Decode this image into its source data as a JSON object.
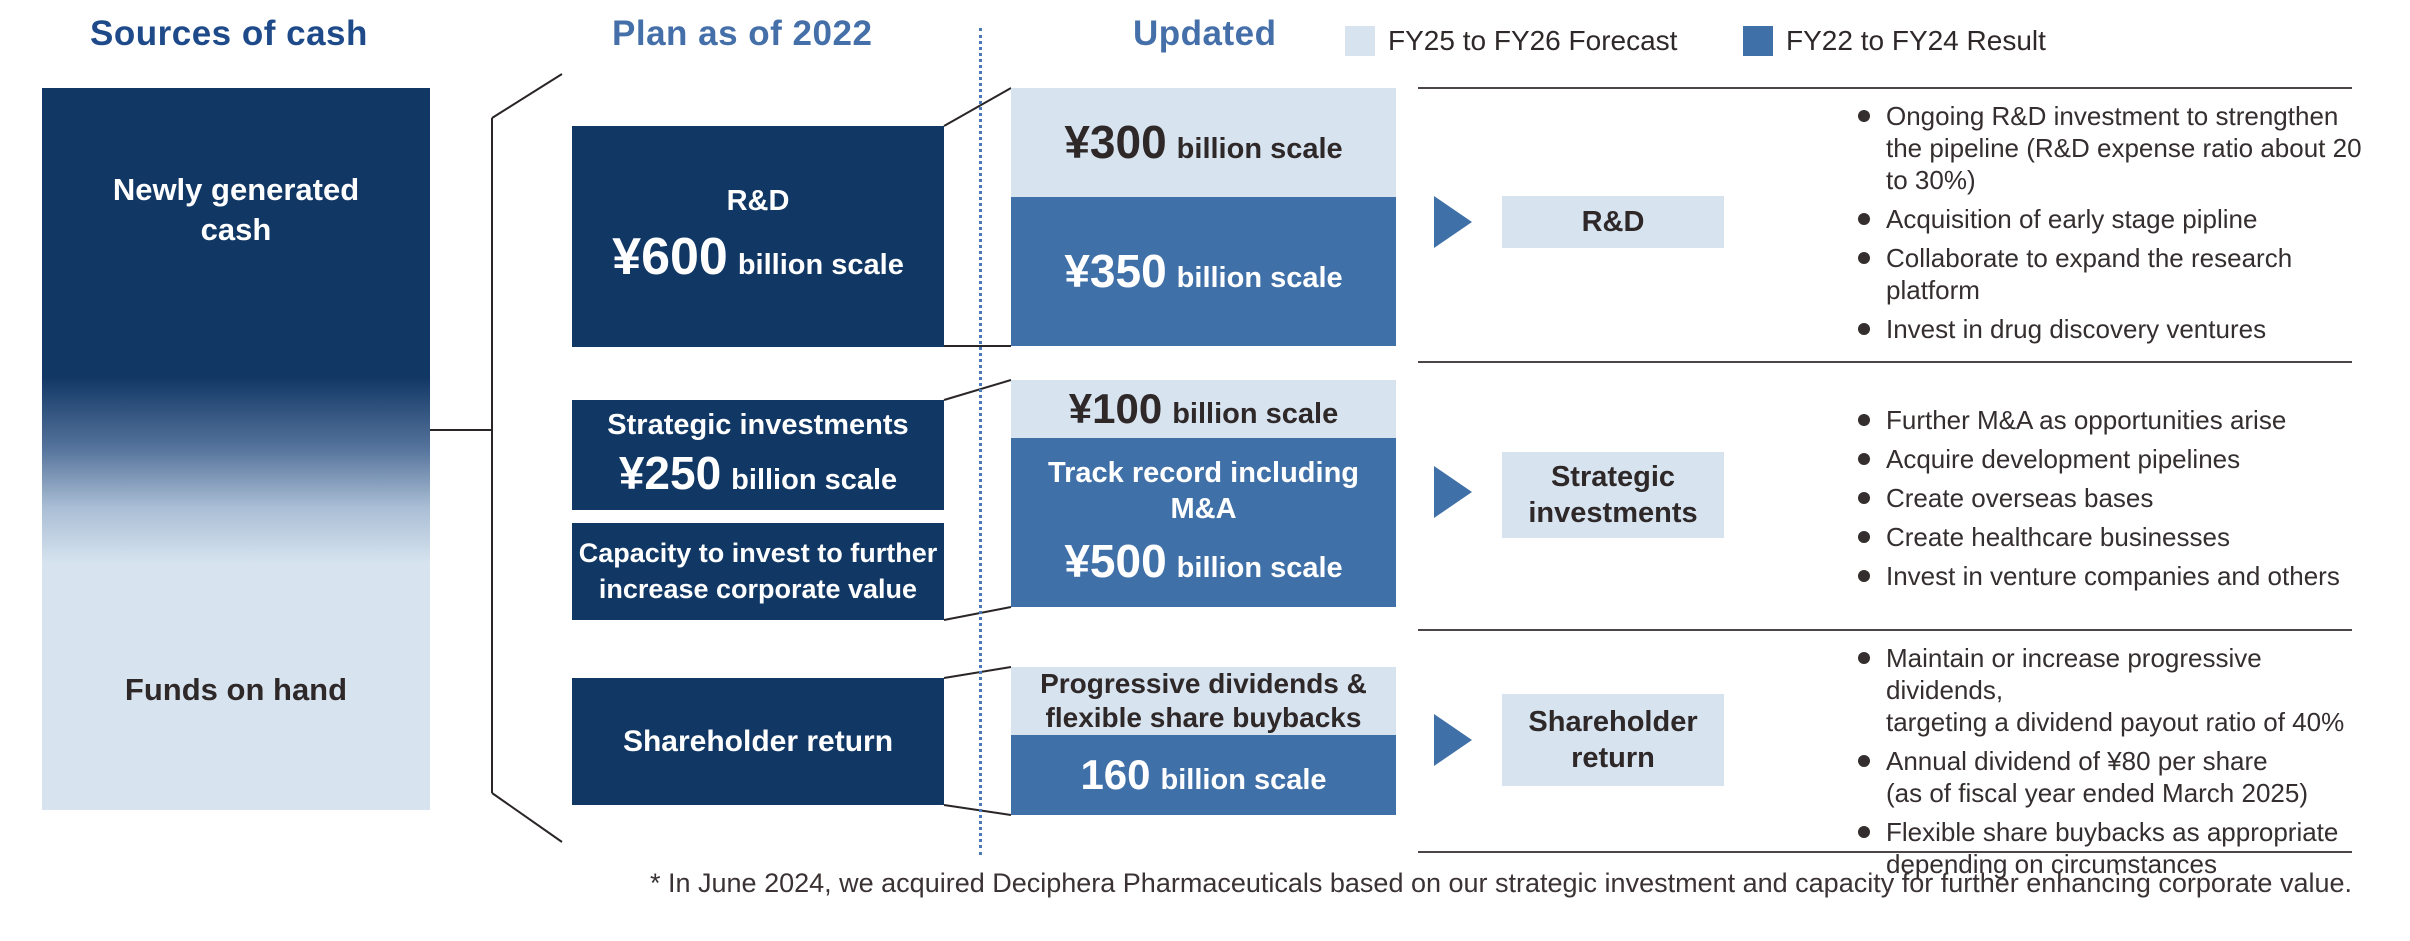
{
  "header": {
    "sources_title": "Sources of cash",
    "plan_title": "Plan as of 2022",
    "updated_title": "Updated",
    "legend": [
      {
        "label": "FY25 to FY26 Forecast",
        "color": "#d7e4f0"
      },
      {
        "label": "FY22 to FY24 Result",
        "color": "#4070a8"
      }
    ]
  },
  "sources": {
    "top_label": "Newly generated\ncash",
    "bottom_label": "Funds on hand"
  },
  "plan": {
    "rd_title": "R&D",
    "rd_amount": "¥600",
    "rd_unit": "billion scale",
    "strategic_title": "Strategic investments",
    "strategic_amount": "¥250",
    "strategic_unit": "billion scale",
    "capacity_label": "Capacity to invest to further\nincrease corporate value",
    "shareholder_label": "Shareholder return"
  },
  "updated": {
    "rd_forecast_amount": "¥300",
    "rd_forecast_unit": "billion scale",
    "rd_result_amount": "¥350",
    "rd_result_unit": "billion scale",
    "strategic_forecast_amount": "¥100",
    "strategic_forecast_unit": "billion scale",
    "strategic_result_title": "Track record including\nM&A",
    "strategic_result_amount": "¥500",
    "strategic_result_unit": "billion scale",
    "shareholder_forecast_label": "Progressive dividends &\nflexible share buybacks",
    "shareholder_result_amount": "160",
    "shareholder_result_unit": "billion scale"
  },
  "rows": [
    {
      "label": "R&D",
      "bullets": [
        "Ongoing R&D investment to strengthen\nthe pipeline (R&D expense ratio about 20\nto 30%)",
        "Acquisition of early stage pipline",
        "Collaborate to expand the research\nplatform",
        "Invest in drug discovery ventures"
      ]
    },
    {
      "label": "Strategic\ninvestments",
      "bullets": [
        "Further M&A as opportunities arise",
        "Acquire development pipelines",
        "Create overseas bases",
        "Create healthcare businesses",
        "Invest in venture companies and others"
      ]
    },
    {
      "label": "Shareholder\nreturn",
      "bullets": [
        "Maintain or increase progressive dividends,\ntargeting a dividend payout ratio of 40%",
        "Annual dividend of ¥80 per share\n(as of fiscal year ended March 2025)",
        "Flexible share buybacks as appropriate\ndepending on circumstances"
      ]
    }
  ],
  "footnote": "* In June 2024, we acquired Deciphera Pharmaceuticals based on our strategic investment and capacity for further enhancing corporate value.",
  "colors": {
    "navy": "#113765",
    "steel": "#4070a8",
    "light_blue": "#d7e4f0",
    "heading_navy": "#1e4a8a",
    "heading_steel": "#456fa9",
    "text_dark": "#352e2f"
  }
}
